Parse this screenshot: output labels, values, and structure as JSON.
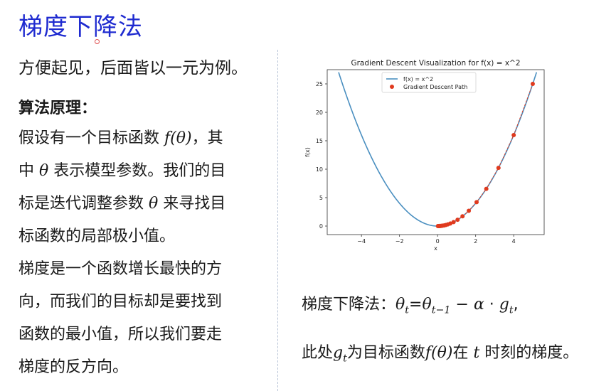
{
  "page": {
    "title": "梯度下降法",
    "intro": "方便起见，后面皆以一元为例。",
    "algorithm_heading": "算法原理：",
    "para1": {
      "line1_a": "假设有一个目标函数 ",
      "line1_math": "f(θ)",
      "line1_b": "，其",
      "line2_a": "中 ",
      "line2_math": "θ",
      "line2_b": " 表示模型参数。我们的目",
      "line3_a": "标是迭代调整参数 ",
      "line3_math": "θ",
      "line3_b": " 来寻找目",
      "line4": "标函数的局部极小值。"
    },
    "para2": {
      "line1": "梯度是一个函数增长最快的方",
      "line2": "向，而我们的目标却是要找到",
      "line3": "函数的最小值，所以我们要走",
      "line4": "梯度的反方向。"
    },
    "formula": {
      "label": "梯度下降法：",
      "lhs": "θ",
      "lhs_sub": "t",
      "eq": "=",
      "rhs1": "θ",
      "rhs1_sub": "t−1",
      "minus": " − ",
      "alpha": "α",
      "dot": " · ",
      "g": "g",
      "g_sub": "t",
      "tail": ","
    },
    "note": {
      "a": "此处",
      "g": "g",
      "g_sub": "t",
      "b": "为目标函数",
      "f": "f(θ)",
      "c": "在 ",
      "t": "t",
      "d": " 时刻的梯度。"
    }
  },
  "chart_data": {
    "type": "line",
    "title": "Gradient Descent Visualization for f(x) = x^2",
    "xlabel": "x",
    "ylabel": "f(x)",
    "xlim": [
      -5.8,
      5.6
    ],
    "ylim": [
      -1.5,
      27.5
    ],
    "xticks": [
      -4,
      -2,
      0,
      2,
      4
    ],
    "yticks": [
      0,
      5,
      10,
      15,
      20,
      25
    ],
    "legend": {
      "position": "top-center",
      "entries": [
        "f(x) = x^2",
        "Gradient Descent Path"
      ]
    },
    "curve": {
      "name": "f(x) = x^2",
      "x_start": -5.2,
      "x_end": 5.2,
      "color": "#4a8fc0"
    },
    "path": {
      "name": "Gradient Descent Path",
      "color": "#e03a1e",
      "x": [
        5.0,
        4.0,
        3.2,
        2.56,
        2.05,
        1.64,
        1.31,
        1.05,
        0.84,
        0.67,
        0.54,
        0.43,
        0.34,
        0.27,
        0.22,
        0.18,
        0.14,
        0.11,
        0.09,
        0.07,
        0.06,
        0.05,
        0.04,
        0.03,
        0.02
      ]
    }
  }
}
